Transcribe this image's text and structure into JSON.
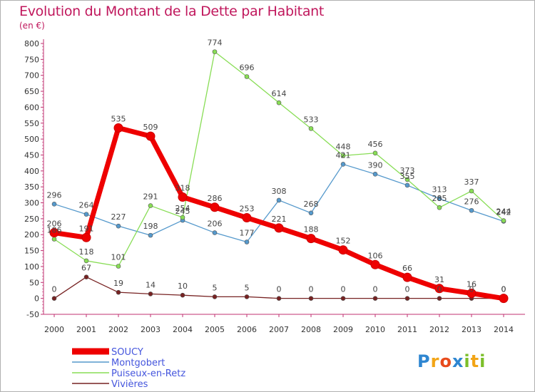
{
  "chart_data": {
    "type": "line",
    "title": "Evolution du Montant de la Dette par Habitant",
    "subtitle": "(en €)",
    "x": [
      "2000",
      "2001",
      "2002",
      "2003",
      "2004",
      "2005",
      "2006",
      "2007",
      "2008",
      "2009",
      "2010",
      "2011",
      "2012",
      "2013",
      "2014"
    ],
    "ylim": [
      -50,
      800
    ],
    "yticks": [
      -50,
      0,
      50,
      100,
      150,
      200,
      250,
      300,
      350,
      400,
      450,
      500,
      550,
      600,
      650,
      700,
      750,
      800
    ],
    "grid": false,
    "legend_position": "bottom-left",
    "series": [
      {
        "name": "SOUCY",
        "color": "#ee0000",
        "values": [
          206,
          191,
          535,
          509,
          318,
          286,
          253,
          221,
          188,
          152,
          106,
          66,
          31,
          16,
          0
        ]
      },
      {
        "name": "Montgobert",
        "color": "#5599cc",
        "values": [
          296,
          264,
          227,
          198,
          245,
          206,
          177,
          308,
          268,
          421,
          390,
          355,
          313,
          276,
          242
        ]
      },
      {
        "name": "Puiseux-en-Retz",
        "color": "#88dd55",
        "values": [
          186,
          118,
          101,
          291,
          254,
          774,
          696,
          614,
          533,
          448,
          456,
          373,
          285,
          337,
          244
        ]
      },
      {
        "name": "Vivières",
        "color": "#772222",
        "values": [
          0,
          67,
          19,
          14,
          10,
          5,
          5,
          0,
          0,
          0,
          0,
          0,
          0,
          0,
          0
        ]
      }
    ]
  },
  "logo": {
    "letters": [
      {
        "ch": "P",
        "color": "#2e86d1"
      },
      {
        "ch": "r",
        "color": "#f2a517"
      },
      {
        "ch": "o",
        "color": "#e84b1c"
      },
      {
        "ch": "x",
        "color": "#2e86d1"
      },
      {
        "ch": "i",
        "color": "#7cbf2a"
      },
      {
        "ch": "t",
        "color": "#f2a517"
      },
      {
        "ch": "i",
        "color": "#7cbf2a"
      }
    ]
  }
}
